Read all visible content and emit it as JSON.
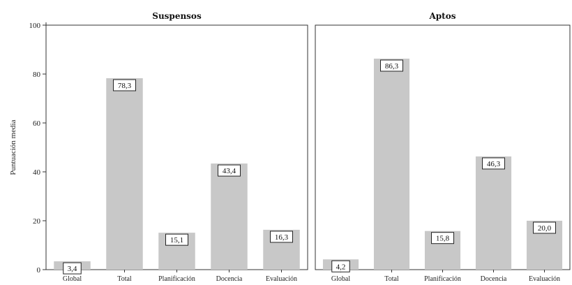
{
  "chart_data": {
    "type": "bar",
    "ylabel": "Puntuación media",
    "ylim": [
      0,
      100
    ],
    "yticks": [
      0,
      20,
      40,
      60,
      80,
      100
    ],
    "categories": [
      "Global",
      "Total",
      "Planificación",
      "Docencia",
      "Evaluación"
    ],
    "bar_color": "#c8c8c8",
    "panels": [
      {
        "title": "Suspensos",
        "values": [
          3.4,
          78.3,
          15.1,
          43.4,
          16.3
        ],
        "labels": [
          "3,4",
          "78,3",
          "15,1",
          "43,4",
          "16,3"
        ]
      },
      {
        "title": "Aptos",
        "values": [
          4.2,
          86.3,
          15.8,
          46.3,
          20.0
        ],
        "labels": [
          "4,2",
          "86,3",
          "15,8",
          "46,3",
          "20,0"
        ]
      }
    ]
  }
}
